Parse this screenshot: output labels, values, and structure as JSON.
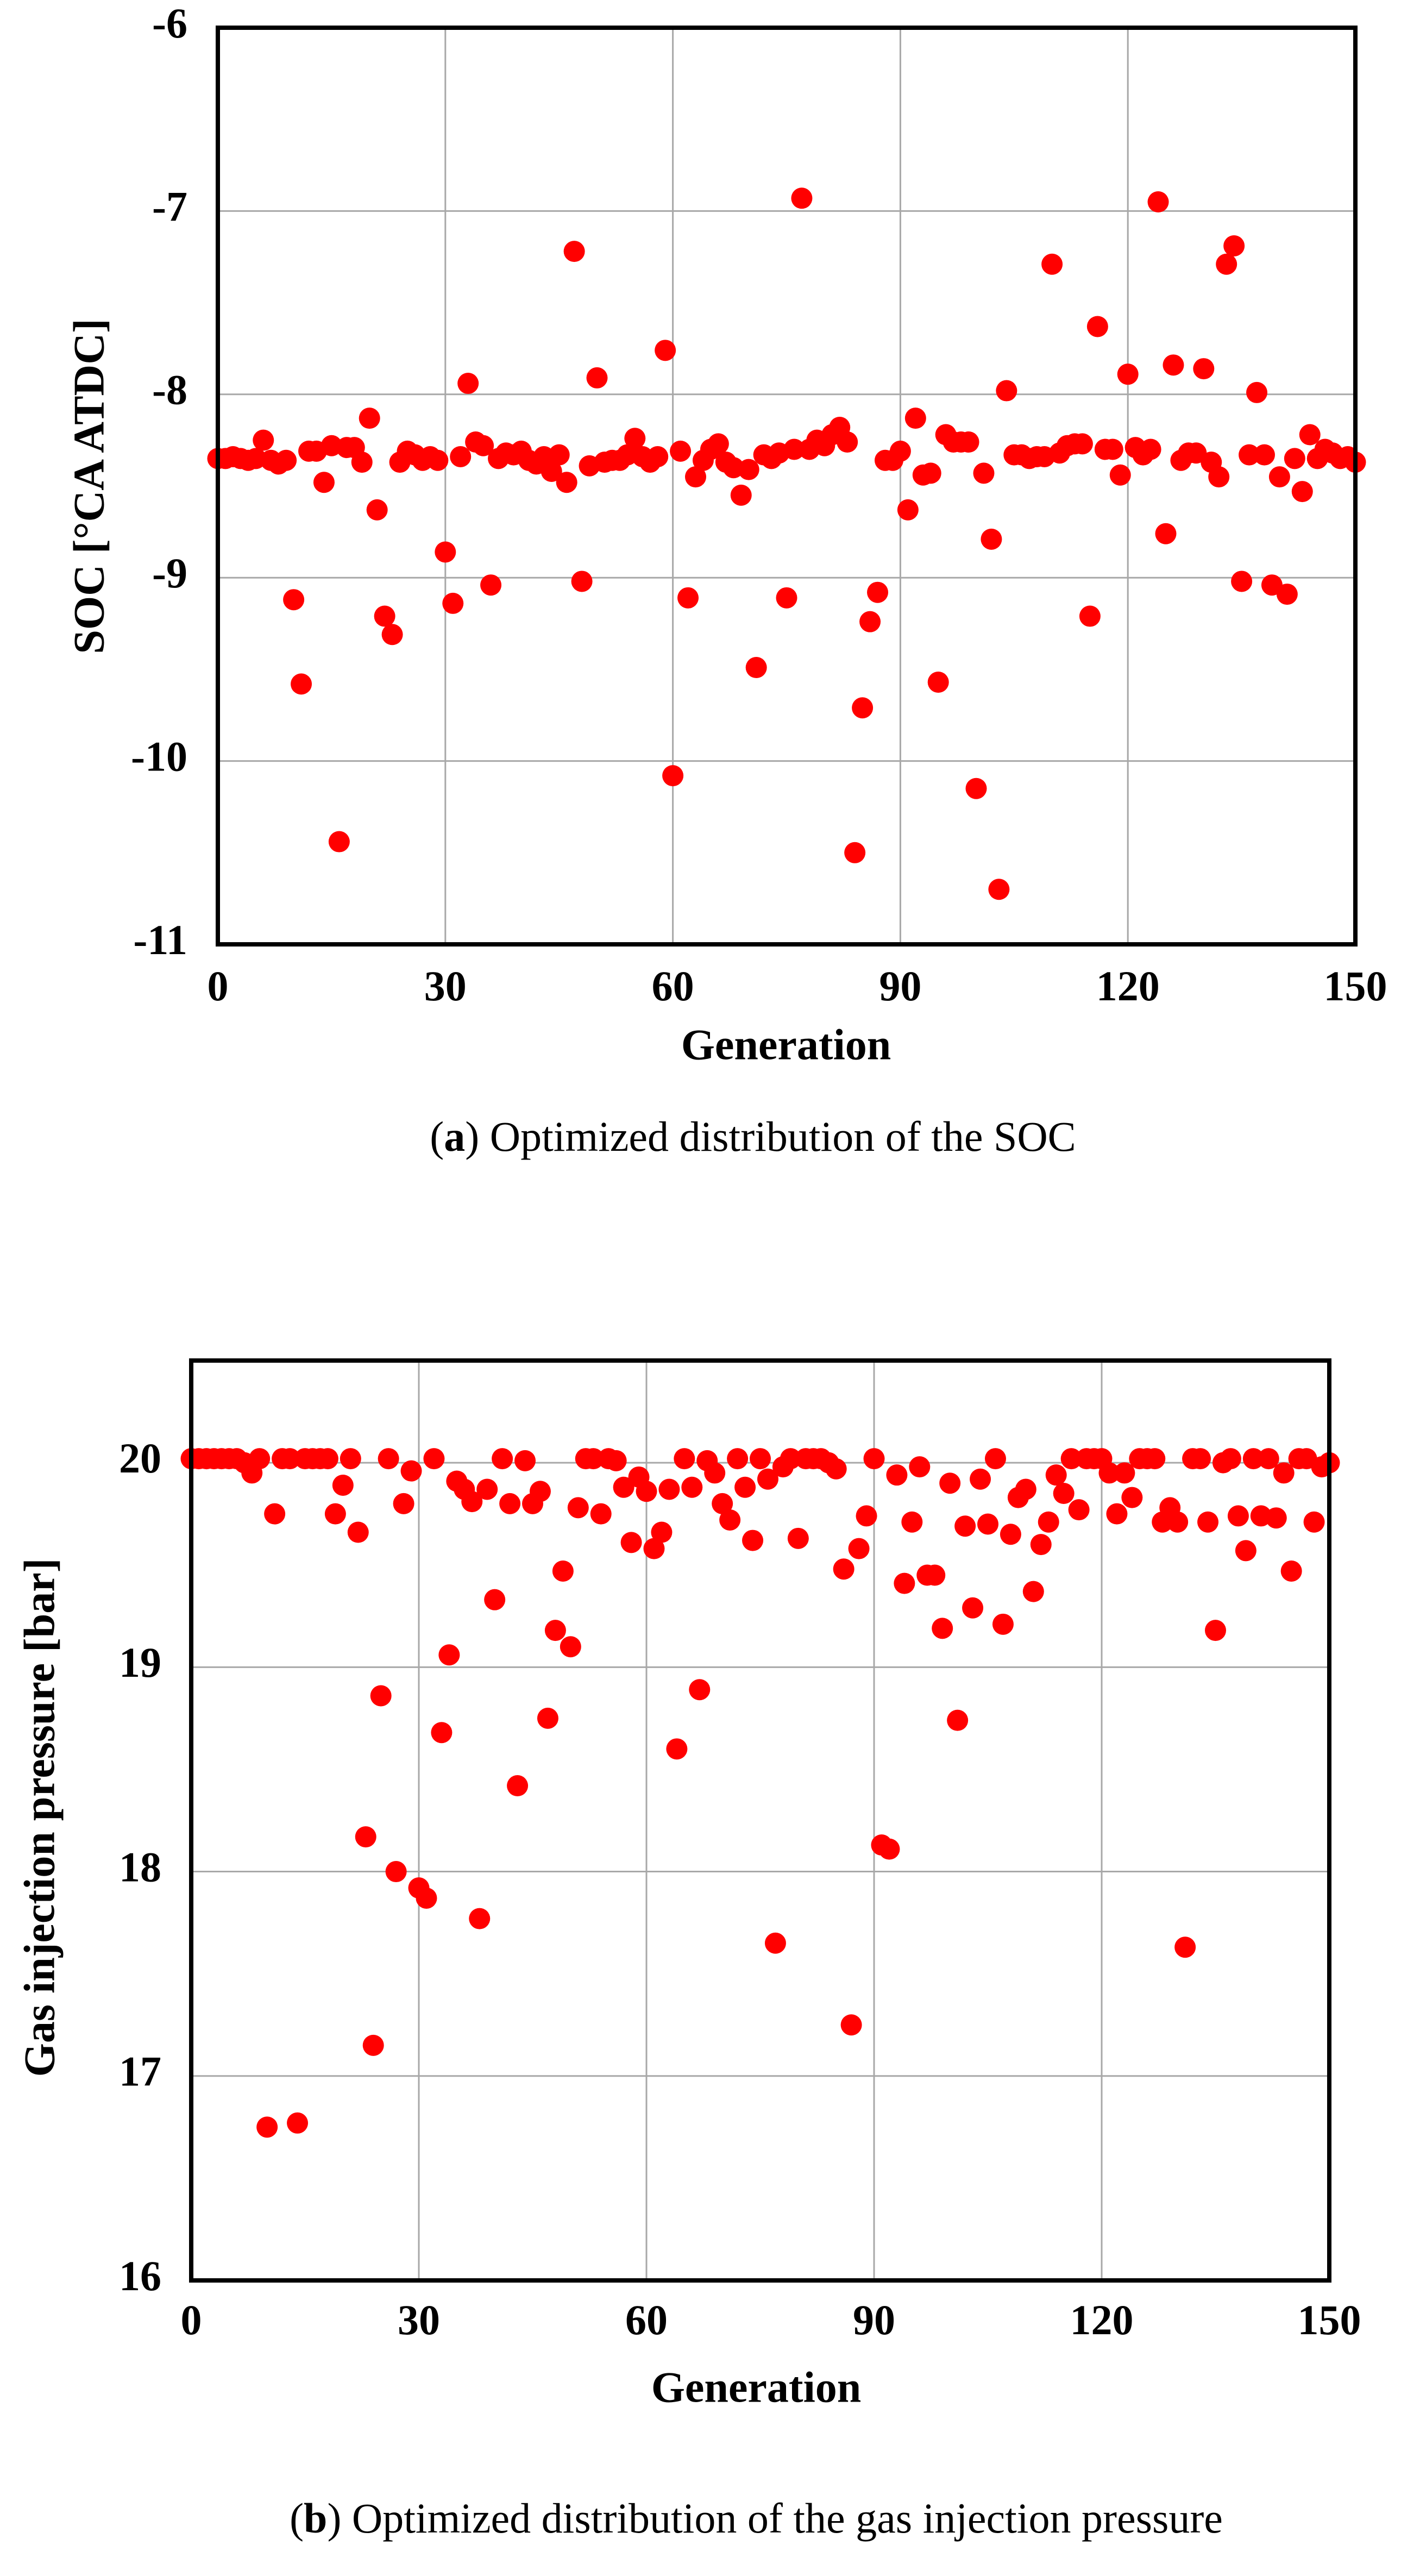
{
  "chart_data": [
    {
      "type": "scatter",
      "color": "#ff0000",
      "grid": true,
      "xlabel": "Generation",
      "ylabel": "SOC [°CA ATDC]",
      "caption": [
        "(",
        "a",
        ") Optimized distribution of the SOC"
      ],
      "xlim": [
        0,
        150
      ],
      "xticks": [
        0,
        30,
        60,
        90,
        120,
        150
      ],
      "ylim": [
        -11,
        -6
      ],
      "yticks": [
        -11,
        -10,
        -9,
        -8,
        -7,
        -6
      ],
      "x": [
        0,
        1,
        2,
        3,
        4,
        5,
        6,
        7,
        8,
        9,
        10,
        11,
        12,
        13,
        14,
        15,
        16,
        17,
        18,
        19,
        20,
        21,
        22,
        23,
        24,
        25,
        26,
        27,
        28,
        29,
        30,
        31,
        32,
        33,
        34,
        35,
        36,
        37,
        38,
        39,
        40,
        41,
        42,
        43,
        44,
        45,
        46,
        47,
        48,
        49,
        50,
        51,
        52,
        53,
        54,
        55,
        56,
        57,
        58,
        59,
        60,
        61,
        62,
        63,
        64,
        65,
        66,
        67,
        68,
        69,
        70,
        71,
        72,
        73,
        74,
        75,
        76,
        77,
        78,
        79,
        80,
        81,
        82,
        83,
        84,
        85,
        86,
        87,
        88,
        89,
        90,
        91,
        92,
        93,
        94,
        95,
        96,
        97,
        98,
        99,
        100,
        101,
        102,
        103,
        104,
        105,
        106,
        107,
        108,
        109,
        110,
        111,
        112,
        113,
        114,
        115,
        116,
        117,
        118,
        119,
        120,
        121,
        122,
        123,
        124,
        125,
        126,
        127,
        128,
        129,
        130,
        131,
        132,
        133,
        134,
        135,
        136,
        137,
        138,
        139,
        140,
        141,
        142,
        143,
        144,
        145,
        146,
        147,
        148,
        149,
        150
      ],
      "values": [
        -8.35,
        -8.35,
        -8.34,
        -8.35,
        -8.36,
        -8.35,
        -8.25,
        -8.36,
        -8.38,
        -8.36,
        -9.12,
        -9.58,
        -8.31,
        -8.31,
        -8.48,
        -8.28,
        -10.44,
        -8.29,
        -8.29,
        -8.37,
        -8.13,
        -8.63,
        -9.21,
        -9.31,
        -8.37,
        -8.31,
        -8.33,
        -8.36,
        -8.34,
        -8.36,
        -8.86,
        -9.14,
        -8.34,
        -7.94,
        -8.26,
        -8.28,
        -9.04,
        -8.35,
        -8.32,
        -8.33,
        -8.31,
        -8.36,
        -8.38,
        -8.34,
        -8.42,
        -8.33,
        -8.48,
        -7.22,
        -9.02,
        -8.39,
        -7.91,
        -8.37,
        -8.36,
        -8.36,
        -8.33,
        -8.24,
        -8.34,
        -8.37,
        -8.34,
        -7.76,
        -10.08,
        -8.31,
        -9.11,
        -8.45,
        -8.36,
        -8.3,
        -8.27,
        -8.37,
        -8.4,
        -8.55,
        -8.41,
        -9.49,
        -8.33,
        -8.35,
        -8.32,
        -9.11,
        -8.3,
        -6.93,
        -8.3,
        -8.25,
        -8.28,
        -8.22,
        -8.18,
        -8.26,
        -10.5,
        -9.71,
        -9.24,
        -9.08,
        -8.36,
        -8.36,
        -8.31,
        -8.63,
        -8.13,
        -8.44,
        -8.43,
        -9.57,
        -8.22,
        -8.26,
        -8.26,
        -8.26,
        -10.15,
        -8.43,
        -8.79,
        -10.7,
        -7.98,
        -8.33,
        -8.33,
        -8.35,
        -8.34,
        -8.34,
        -7.29,
        -8.32,
        -8.28,
        -8.27,
        -8.27,
        -9.21,
        -7.63,
        -8.3,
        -8.3,
        -8.44,
        -7.89,
        -8.29,
        -8.33,
        -8.3,
        -6.95,
        -8.76,
        -7.84,
        -8.36,
        -8.32,
        -8.32,
        -7.86,
        -8.37,
        -8.45,
        -7.29,
        -7.19,
        -9.02,
        -8.33,
        -7.99,
        -8.33,
        -9.04,
        -8.45,
        -9.09,
        -8.35,
        -8.53,
        -8.22,
        -8.35,
        -8.3,
        -8.32,
        -8.35,
        -8.34,
        -8.37
      ]
    },
    {
      "type": "scatter",
      "color": "#ff0000",
      "grid": true,
      "xlabel": "Generation",
      "ylabel": "Gas injection pressure [bar]",
      "caption": [
        "(",
        "b",
        ") Optimized distribution of the gas injection pressure"
      ],
      "xlim": [
        0,
        150
      ],
      "xticks": [
        0,
        30,
        60,
        90,
        120,
        150
      ],
      "ylim": [
        16,
        20.5
      ],
      "yticks": [
        16,
        17,
        18,
        19,
        20
      ],
      "x": [
        0,
        1,
        2,
        3,
        4,
        5,
        6,
        7,
        8,
        9,
        10,
        11,
        12,
        13,
        14,
        15,
        16,
        17,
        18,
        19,
        20,
        21,
        22,
        23,
        24,
        25,
        26,
        27,
        28,
        29,
        30,
        31,
        32,
        33,
        34,
        35,
        36,
        37,
        38,
        39,
        40,
        41,
        42,
        43,
        44,
        45,
        46,
        47,
        48,
        49,
        50,
        51,
        52,
        53,
        54,
        55,
        56,
        57,
        58,
        59,
        60,
        61,
        62,
        63,
        64,
        65,
        66,
        67,
        68,
        69,
        70,
        71,
        72,
        73,
        74,
        75,
        76,
        77,
        78,
        79,
        80,
        81,
        82,
        83,
        84,
        85,
        86,
        87,
        88,
        89,
        90,
        91,
        92,
        93,
        94,
        95,
        96,
        97,
        98,
        99,
        100,
        101,
        102,
        103,
        104,
        105,
        106,
        107,
        108,
        109,
        110,
        111,
        112,
        113,
        114,
        115,
        116,
        117,
        118,
        119,
        120,
        121,
        122,
        123,
        124,
        125,
        126,
        127,
        128,
        129,
        130,
        131,
        132,
        133,
        134,
        135,
        136,
        137,
        138,
        139,
        140,
        141,
        142,
        143,
        144,
        145,
        146,
        147,
        148,
        149,
        150
      ],
      "values": [
        20.02,
        20.02,
        20.02,
        20.02,
        20.02,
        20.02,
        20.02,
        20.0,
        19.95,
        20.02,
        16.75,
        19.75,
        20.02,
        20.02,
        16.77,
        20.02,
        20.02,
        20.02,
        20.02,
        19.75,
        19.89,
        20.02,
        19.66,
        18.17,
        17.15,
        18.86,
        20.02,
        18.0,
        19.8,
        19.96,
        17.92,
        17.87,
        20.02,
        18.68,
        19.06,
        19.91,
        19.87,
        19.81,
        17.77,
        19.87,
        19.33,
        20.02,
        19.8,
        18.42,
        20.01,
        19.8,
        19.86,
        18.75,
        19.18,
        19.47,
        19.1,
        19.78,
        20.02,
        20.02,
        19.75,
        20.02,
        20.01,
        19.88,
        19.61,
        19.93,
        19.86,
        19.58,
        19.66,
        19.87,
        18.6,
        20.02,
        19.88,
        18.89,
        20.01,
        19.95,
        19.8,
        19.72,
        20.02,
        19.88,
        19.62,
        20.02,
        19.92,
        17.65,
        19.98,
        20.02,
        19.63,
        20.02,
        20.02,
        20.02,
        20.0,
        19.97,
        19.48,
        17.25,
        19.58,
        19.74,
        20.02,
        18.13,
        18.11,
        19.94,
        19.41,
        19.71,
        19.98,
        19.45,
        19.45,
        19.19,
        19.9,
        18.74,
        19.69,
        19.29,
        19.92,
        19.7,
        20.02,
        19.21,
        19.65,
        19.83,
        19.87,
        19.37,
        19.6,
        19.71,
        19.94,
        19.85,
        20.02,
        19.77,
        20.02,
        20.02,
        20.02,
        19.95,
        19.75,
        19.95,
        19.83,
        20.02,
        20.02,
        20.02,
        19.71,
        19.78,
        19.71,
        17.63,
        20.02,
        20.02,
        19.71,
        19.18,
        20.0,
        20.02,
        19.74,
        19.57,
        20.02,
        19.74,
        20.02,
        19.73,
        19.95,
        19.47,
        20.02,
        20.02,
        19.71,
        19.98,
        20.0
      ]
    }
  ]
}
